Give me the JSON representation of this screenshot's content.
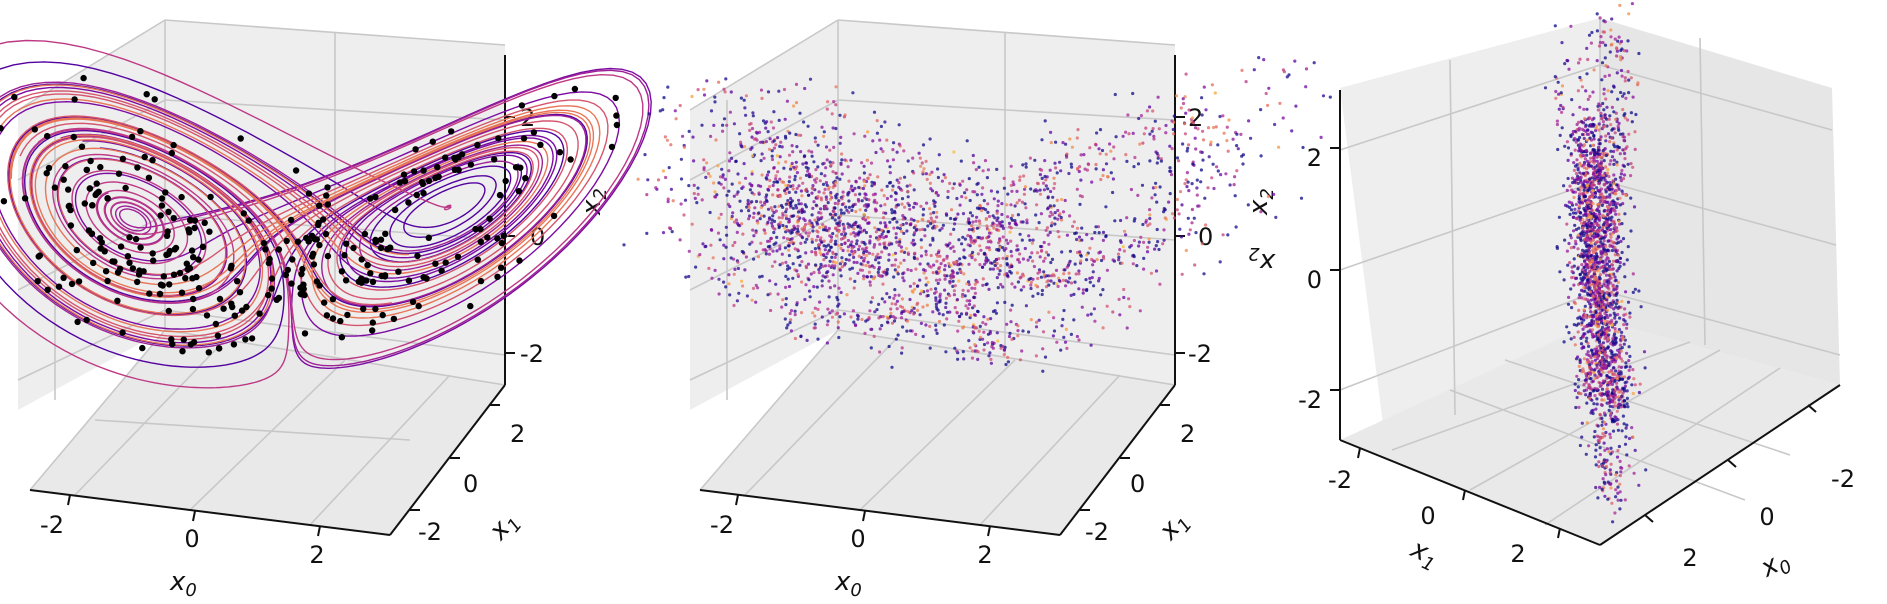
{
  "chart_data": [
    {
      "type": "line",
      "description_panel": "3D trajectory with sampled points",
      "axes": {
        "x": {
          "label_base": "x",
          "label_sub": "0",
          "ticks": [
            "-2",
            "0",
            "2"
          ]
        },
        "y": {
          "label_base": "x",
          "label_sub": "1",
          "ticks": [
            "-2",
            "0",
            "2"
          ]
        },
        "z": {
          "label_base": "x",
          "label_sub": "2",
          "ticks": [
            "-2",
            "0",
            "2"
          ]
        }
      },
      "ranges": {
        "x": [
          -2.8,
          2.8
        ],
        "y": [
          -2.8,
          2.8
        ],
        "z": [
          -2.8,
          2.8
        ]
      },
      "grid": true,
      "colormap": "plasma",
      "series": [
        {
          "role": "trajectories",
          "count": 6,
          "color_from": "plasma"
        },
        {
          "role": "samples",
          "marker": "dot",
          "color": "#000000",
          "count": 340
        }
      ],
      "attractor": {
        "wing_centers": [
          [
            -1.0,
            0.1,
            0.3
          ],
          [
            1.35,
            -0.15,
            0.2
          ]
        ]
      }
    },
    {
      "type": "scatter",
      "description_panel": "density-coloured point cloud",
      "axes": {
        "x": {
          "label_base": "x",
          "label_sub": "0",
          "ticks": [
            "-2",
            "0",
            "2"
          ]
        },
        "y": {
          "label_base": "x",
          "label_sub": "1",
          "ticks": [
            "-2",
            "0",
            "2"
          ]
        },
        "z": {
          "label_base": "x",
          "label_sub": "2",
          "ticks": [
            "-2",
            "0",
            "2"
          ]
        }
      },
      "ranges": {
        "x": [
          -2.8,
          2.8
        ],
        "y": [
          -2.8,
          2.8
        ],
        "z": [
          -2.8,
          2.8
        ]
      },
      "grid": true,
      "colormap": "plasma",
      "series": [
        {
          "role": "points",
          "color_from": "plasma",
          "count": 2600
        }
      ]
    },
    {
      "type": "scatter",
      "description_panel": "same cloud, rotated view",
      "axes": {
        "x": {
          "label_base": "x",
          "label_sub": "0",
          "ticks": [
            "-2",
            "0",
            "2"
          ]
        },
        "y": {
          "label_base": "x",
          "label_sub": "1",
          "ticks": [
            "-2",
            "0",
            "2"
          ]
        },
        "z": {
          "label_base": "x",
          "label_sub": "2",
          "ticks": [
            "2",
            "0",
            "-2"
          ]
        }
      },
      "ranges": {
        "x": [
          -2.8,
          2.8
        ],
        "y": [
          -2.8,
          2.8
        ],
        "z": [
          -2.8,
          2.8
        ]
      },
      "grid": true,
      "colormap": "plasma",
      "series": [
        {
          "role": "points",
          "color_from": "plasma",
          "count": 2200
        }
      ]
    }
  ],
  "colors": {
    "pane": "#eeeeee",
    "pane_side": "#e6e6e6",
    "grid": "#c8c8c8",
    "axis": "#111111",
    "plasma": [
      "#0d0887",
      "#6a00a8",
      "#b12a90",
      "#e16462",
      "#fca636",
      "#f0f921"
    ]
  }
}
